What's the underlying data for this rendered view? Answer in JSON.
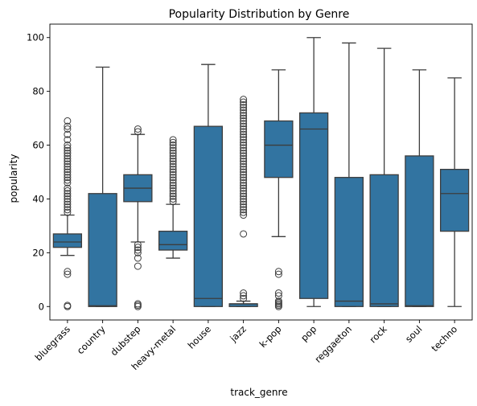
{
  "chart_data": {
    "type": "box",
    "title": "Popularity Distribution by Genre",
    "xlabel": "track_genre",
    "ylabel": "popularity",
    "ylim": [
      -5,
      105
    ],
    "yticks": [
      0,
      20,
      40,
      60,
      80,
      100
    ],
    "grid": false,
    "box_color": "#3274a1",
    "line_color": "#3d3d3d",
    "categories": [
      "bluegrass",
      "country",
      "dubstep",
      "heavy-metal",
      "house",
      "jazz",
      "k-pop",
      "pop",
      "reggaeton",
      "rock",
      "soul",
      "techno"
    ],
    "boxes": [
      {
        "q1": 22,
        "median": 24,
        "q3": 27,
        "whislo": 19,
        "whishi": 34,
        "fliers": [
          0,
          0.4,
          12,
          13,
          35,
          36,
          37,
          38,
          39,
          40,
          41,
          42,
          43,
          44,
          46,
          47,
          48,
          49,
          50,
          51,
          52,
          53,
          54,
          55,
          56,
          57,
          58,
          59,
          60,
          62,
          64,
          66,
          67,
          69
        ]
      },
      {
        "q1": 0,
        "median": 0.3,
        "q3": 42,
        "whislo": 0,
        "whishi": 89,
        "fliers": []
      },
      {
        "q1": 39,
        "median": 44,
        "q3": 49,
        "whislo": 24,
        "whishi": 64,
        "fliers": [
          0,
          0.5,
          1,
          15,
          18,
          20,
          21,
          22,
          23,
          65,
          66
        ]
      },
      {
        "q1": 21,
        "median": 23,
        "q3": 28,
        "whislo": 18,
        "whishi": 38,
        "fliers": [
          39,
          40,
          41,
          42,
          43,
          44,
          45,
          46,
          47,
          48,
          49,
          50,
          51,
          52,
          53,
          54,
          55,
          56,
          57,
          58,
          59,
          60,
          61,
          62
        ]
      },
      {
        "q1": 0,
        "median": 3,
        "q3": 67,
        "whislo": 0,
        "whishi": 90,
        "fliers": []
      },
      {
        "q1": 0,
        "median": 1,
        "q3": 1,
        "whislo": 0,
        "whishi": 2,
        "fliers": [
          3,
          4,
          5,
          27,
          34,
          35,
          36,
          37,
          38,
          39,
          40,
          41,
          42,
          43,
          44,
          45,
          46,
          47,
          48,
          49,
          50,
          51,
          52,
          53,
          54,
          55,
          56,
          57,
          58,
          59,
          60,
          61,
          62,
          63,
          64,
          65,
          66,
          67,
          68,
          69,
          70,
          71,
          72,
          73,
          74,
          75,
          76,
          77
        ]
      },
      {
        "q1": 48,
        "median": 60,
        "q3": 69,
        "whislo": 26,
        "whishi": 88,
        "fliers": [
          0,
          0.5,
          1,
          1.5,
          2,
          4,
          5,
          12,
          13
        ]
      },
      {
        "q1": 3,
        "median": 66,
        "q3": 72,
        "whislo": 0,
        "whishi": 100,
        "fliers": []
      },
      {
        "q1": 0,
        "median": 2,
        "q3": 48,
        "whislo": 0,
        "whishi": 98,
        "fliers": []
      },
      {
        "q1": 0,
        "median": 1,
        "q3": 49,
        "whislo": 0,
        "whishi": 96,
        "fliers": []
      },
      {
        "q1": 0,
        "median": 0.3,
        "q3": 56,
        "whislo": 0,
        "whishi": 88,
        "fliers": []
      },
      {
        "q1": 28,
        "median": 42,
        "q3": 51,
        "whislo": 0,
        "whishi": 85,
        "fliers": []
      }
    ]
  }
}
